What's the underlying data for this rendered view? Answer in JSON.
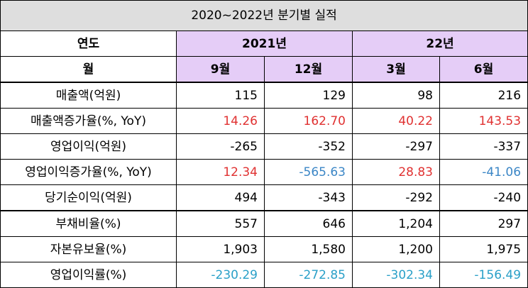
{
  "title": "2020~2022년 분기별 실적",
  "header": {
    "year_label": "연도",
    "month_label": "월",
    "year_2021": "2021년",
    "year_22": "22년",
    "months": [
      "9월",
      "12월",
      "3월",
      "6월"
    ]
  },
  "rows": [
    {
      "label": "매출액(억원)",
      "values": [
        "115",
        "129",
        "98",
        "216"
      ],
      "colors": [
        "",
        "",
        "",
        ""
      ]
    },
    {
      "label": "매출액증가율(%, YoY)",
      "values": [
        "14.26",
        "162.70",
        "40.22",
        "143.53"
      ],
      "colors": [
        "pos",
        "pos",
        "pos",
        "pos"
      ]
    },
    {
      "label": "영업이익(억원)",
      "values": [
        "-265",
        "-352",
        "-297",
        "-337"
      ],
      "colors": [
        "",
        "",
        "",
        ""
      ]
    },
    {
      "label": "영업이익증가율(%, YoY)",
      "values": [
        "12.34",
        "-565.63",
        "28.83",
        "-41.06"
      ],
      "colors": [
        "pos",
        "neg",
        "pos",
        "neg"
      ]
    },
    {
      "label": "당기순이익(억원)",
      "values": [
        "494",
        "-343",
        "-292",
        "-240"
      ],
      "colors": [
        "",
        "",
        "",
        ""
      ]
    },
    {
      "label": "부채비율(%)",
      "values": [
        "557",
        "646",
        "1,204",
        "297"
      ],
      "colors": [
        "",
        "",
        "",
        ""
      ]
    },
    {
      "label": "자본유보율(%)",
      "values": [
        "1,903",
        "1,580",
        "1,200",
        "1,975"
      ],
      "colors": [
        "",
        "",
        "",
        ""
      ]
    },
    {
      "label": "영업이익률(%)",
      "values": [
        "-230.29",
        "-272.85",
        "-302.34",
        "-156.49"
      ],
      "colors": [
        "rate",
        "rate",
        "rate",
        "rate"
      ]
    }
  ],
  "colors": {
    "title_bg": "#dedede",
    "header_purple": "#e5cdf7",
    "positive_red": "#e03131",
    "negative_blue": "#3b86c6",
    "margin_teal": "#2aa0c8"
  }
}
